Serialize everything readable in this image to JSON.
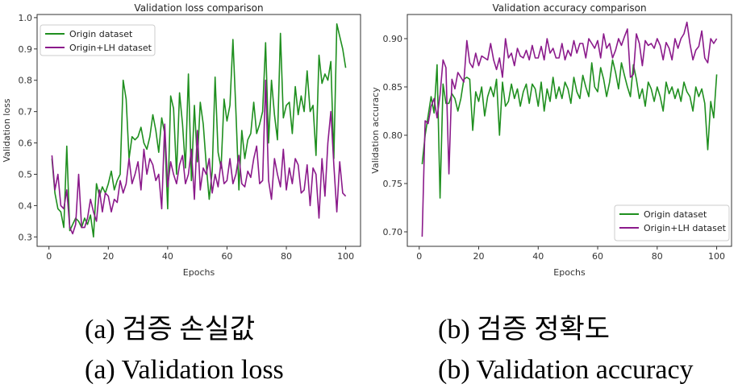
{
  "chart_data": [
    {
      "type": "line",
      "title": "Validation loss comparison",
      "xlabel": "Epochs",
      "ylabel": "Validation loss",
      "xlim": [
        -4,
        105
      ],
      "ylim": [
        0.27,
        1.01
      ],
      "xticks": [
        0,
        20,
        40,
        60,
        80,
        100
      ],
      "yticks": [
        0.3,
        0.4,
        0.5,
        0.6,
        0.7,
        0.8,
        0.9,
        1.0
      ],
      "grid": false,
      "legend_position": "top-left",
      "x": [
        1,
        2,
        3,
        4,
        5,
        6,
        7,
        8,
        9,
        10,
        11,
        12,
        13,
        14,
        15,
        16,
        17,
        18,
        19,
        20,
        21,
        22,
        23,
        24,
        25,
        26,
        27,
        28,
        29,
        30,
        31,
        32,
        33,
        34,
        35,
        36,
        37,
        38,
        39,
        40,
        41,
        42,
        43,
        44,
        45,
        46,
        47,
        48,
        49,
        50,
        51,
        52,
        53,
        54,
        55,
        56,
        57,
        58,
        59,
        60,
        61,
        62,
        63,
        64,
        65,
        66,
        67,
        68,
        69,
        70,
        71,
        72,
        73,
        74,
        75,
        76,
        77,
        78,
        79,
        80,
        81,
        82,
        83,
        84,
        85,
        86,
        87,
        88,
        89,
        90,
        91,
        92,
        93,
        94,
        95,
        96,
        97,
        98,
        99,
        100
      ],
      "series": [
        {
          "name": "Origin dataset",
          "color": "#1f8f1f",
          "values": [
            0.55,
            0.44,
            0.39,
            0.38,
            0.33,
            0.59,
            0.32,
            0.34,
            0.36,
            0.35,
            0.33,
            0.36,
            0.34,
            0.37,
            0.3,
            0.47,
            0.43,
            0.46,
            0.44,
            0.47,
            0.51,
            0.45,
            0.48,
            0.5,
            0.8,
            0.74,
            0.55,
            0.62,
            0.61,
            0.62,
            0.65,
            0.6,
            0.58,
            0.62,
            0.69,
            0.64,
            0.57,
            0.68,
            0.63,
            0.39,
            0.75,
            0.71,
            0.5,
            0.76,
            0.66,
            0.52,
            0.82,
            0.48,
            0.72,
            0.54,
            0.73,
            0.66,
            0.53,
            0.42,
            0.51,
            0.81,
            0.57,
            0.52,
            0.74,
            0.67,
            0.72,
            0.93,
            0.7,
            0.45,
            0.64,
            0.55,
            0.61,
            0.63,
            0.73,
            0.63,
            0.66,
            0.7,
            0.92,
            0.6,
            0.8,
            0.69,
            0.61,
            0.95,
            0.68,
            0.72,
            0.73,
            0.63,
            0.78,
            0.69,
            0.75,
            0.7,
            0.83,
            0.7,
            0.72,
            0.56,
            0.88,
            0.79,
            0.82,
            0.8,
            0.86,
            0.55,
            0.98,
            0.94,
            0.9,
            0.84
          ]
        },
        {
          "name": "Origin+LH dataset",
          "color": "#8b1a8b",
          "values": [
            0.56,
            0.45,
            0.5,
            0.4,
            0.39,
            0.45,
            0.33,
            0.31,
            0.34,
            0.5,
            0.33,
            0.33,
            0.36,
            0.42,
            0.38,
            0.35,
            0.45,
            0.38,
            0.44,
            0.43,
            0.38,
            0.42,
            0.41,
            0.48,
            0.44,
            0.47,
            0.55,
            0.47,
            0.5,
            0.54,
            0.45,
            0.58,
            0.5,
            0.55,
            0.53,
            0.48,
            0.5,
            0.39,
            0.66,
            0.46,
            0.54,
            0.5,
            0.47,
            0.53,
            0.56,
            0.47,
            0.5,
            0.58,
            0.42,
            0.64,
            0.45,
            0.52,
            0.5,
            0.55,
            0.44,
            0.5,
            0.46,
            0.54,
            0.47,
            0.48,
            0.55,
            0.47,
            0.5,
            0.56,
            0.47,
            0.46,
            0.51,
            0.49,
            0.55,
            0.59,
            0.47,
            0.48,
            0.8,
            0.48,
            0.42,
            0.55,
            0.5,
            0.46,
            0.58,
            0.45,
            0.52,
            0.47,
            0.55,
            0.53,
            0.44,
            0.45,
            0.53,
            0.4,
            0.52,
            0.5,
            0.36,
            0.55,
            0.43,
            0.6,
            0.7,
            0.53,
            0.38,
            0.54,
            0.44,
            0.43
          ]
        }
      ]
    },
    {
      "type": "line",
      "title": "Validation accuracy comparison",
      "xlabel": "Epochs",
      "ylabel": "Validation accuracy",
      "xlim": [
        -4,
        105
      ],
      "ylim": [
        0.685,
        0.925
      ],
      "xticks": [
        0,
        20,
        40,
        60,
        80,
        100
      ],
      "yticks": [
        0.7,
        0.75,
        0.8,
        0.85,
        0.9
      ],
      "grid": false,
      "legend_position": "bottom-right",
      "x": [
        1,
        2,
        3,
        4,
        5,
        6,
        7,
        8,
        9,
        10,
        11,
        12,
        13,
        14,
        15,
        16,
        17,
        18,
        19,
        20,
        21,
        22,
        23,
        24,
        25,
        26,
        27,
        28,
        29,
        30,
        31,
        32,
        33,
        34,
        35,
        36,
        37,
        38,
        39,
        40,
        41,
        42,
        43,
        44,
        45,
        46,
        47,
        48,
        49,
        50,
        51,
        52,
        53,
        54,
        55,
        56,
        57,
        58,
        59,
        60,
        61,
        62,
        63,
        64,
        65,
        66,
        67,
        68,
        69,
        70,
        71,
        72,
        73,
        74,
        75,
        76,
        77,
        78,
        79,
        80,
        81,
        82,
        83,
        84,
        85,
        86,
        87,
        88,
        89,
        90,
        91,
        92,
        93,
        94,
        95,
        96,
        97,
        98,
        99,
        100
      ],
      "series": [
        {
          "name": "Origin dataset",
          "color": "#1f8f1f",
          "values": [
            0.77,
            0.8,
            0.82,
            0.84,
            0.823,
            0.873,
            0.735,
            0.853,
            0.833,
            0.833,
            0.843,
            0.838,
            0.825,
            0.838,
            0.858,
            0.86,
            0.858,
            0.805,
            0.845,
            0.835,
            0.85,
            0.82,
            0.84,
            0.85,
            0.84,
            0.858,
            0.8,
            0.855,
            0.83,
            0.835,
            0.853,
            0.838,
            0.848,
            0.83,
            0.845,
            0.853,
            0.833,
            0.853,
            0.848,
            0.83,
            0.855,
            0.825,
            0.848,
            0.835,
            0.86,
            0.838,
            0.85,
            0.838,
            0.855,
            0.848,
            0.833,
            0.86,
            0.845,
            0.838,
            0.862,
            0.85,
            0.84,
            0.875,
            0.85,
            0.845,
            0.87,
            0.858,
            0.84,
            0.855,
            0.878,
            0.865,
            0.848,
            0.875,
            0.862,
            0.85,
            0.84,
            0.873,
            0.858,
            0.838,
            0.848,
            0.83,
            0.855,
            0.848,
            0.835,
            0.85,
            0.84,
            0.825,
            0.855,
            0.843,
            0.85,
            0.838,
            0.848,
            0.835,
            0.855,
            0.845,
            0.84,
            0.825,
            0.85,
            0.84,
            0.848,
            0.833,
            0.785,
            0.835,
            0.818,
            0.863
          ]
        },
        {
          "name": "Origin+LH dataset",
          "color": "#8b1a8b",
          "values": [
            0.695,
            0.815,
            0.812,
            0.83,
            0.838,
            0.818,
            0.842,
            0.878,
            0.87,
            0.76,
            0.858,
            0.848,
            0.865,
            0.86,
            0.855,
            0.898,
            0.875,
            0.87,
            0.885,
            0.872,
            0.882,
            0.88,
            0.878,
            0.895,
            0.878,
            0.868,
            0.88,
            0.86,
            0.9,
            0.88,
            0.885,
            0.872,
            0.89,
            0.882,
            0.88,
            0.888,
            0.878,
            0.893,
            0.88,
            0.88,
            0.892,
            0.878,
            0.9,
            0.885,
            0.89,
            0.88,
            0.88,
            0.895,
            0.878,
            0.888,
            0.882,
            0.898,
            0.885,
            0.895,
            0.895,
            0.88,
            0.9,
            0.895,
            0.89,
            0.898,
            0.88,
            0.905,
            0.89,
            0.895,
            0.88,
            0.888,
            0.9,
            0.893,
            0.902,
            0.91,
            0.86,
            0.863,
            0.905,
            0.895,
            0.872,
            0.898,
            0.893,
            0.895,
            0.89,
            0.9,
            0.893,
            0.878,
            0.896,
            0.89,
            0.878,
            0.9,
            0.89,
            0.9,
            0.905,
            0.917,
            0.895,
            0.878,
            0.888,
            0.892,
            0.908,
            0.88,
            0.875,
            0.9,
            0.895,
            0.9
          ]
        }
      ]
    }
  ],
  "captions": {
    "a_korean": "(a) 검증 손실값",
    "a_english": "(a) Validation loss",
    "b_korean": "(b) 검증 정확도",
    "b_english": "(b) Validation accuracy"
  }
}
